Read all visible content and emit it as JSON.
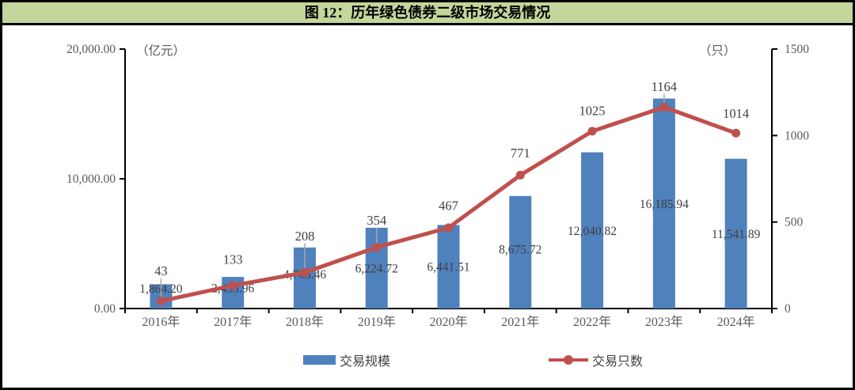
{
  "title_bar": {
    "text": "图 12：历年绿色债券二级市场交易情况"
  },
  "colors": {
    "title_bg": "#c3d69b",
    "bar": "#4f81bd",
    "line": "#c0504d",
    "axis_line": "#000000",
    "axis_text": "#595959",
    "data_label": "#404040",
    "leader": "#a6a6a6"
  },
  "chart_data": {
    "type": "bar",
    "subtype": "bar+line combo, dual axis",
    "categories": [
      "2016年",
      "2017年",
      "2018年",
      "2019年",
      "2020年",
      "2021年",
      "2022年",
      "2023年",
      "2024年"
    ],
    "series": [
      {
        "name": "交易规模",
        "type": "bar",
        "axis": "left",
        "unit": "亿元",
        "values": [
          1864.2,
          2433.96,
          4703.46,
          6224.72,
          6441.51,
          8675.72,
          12040.82,
          16185.94,
          11541.89
        ],
        "labels": [
          "1,864.20",
          "2,433.96",
          "4,703.46",
          "6,224.72",
          "6,441.51",
          "8,675.72",
          "12,040.82",
          "16,185.94",
          "11,541.89"
        ]
      },
      {
        "name": "交易只数",
        "type": "line",
        "axis": "right",
        "unit": "只",
        "values": [
          43,
          133,
          208,
          354,
          467,
          771,
          1025,
          1164,
          1014
        ],
        "labels": [
          "43",
          "133",
          "208",
          "354",
          "467",
          "771",
          "1025",
          "1164",
          "1014"
        ]
      }
    ],
    "left_axis": {
      "unit_label": "（亿元）",
      "min": 0,
      "max": 20000,
      "ticks": [
        {
          "label": "0.00",
          "v": 0
        },
        {
          "label": "10,000.00",
          "v": 10000
        },
        {
          "label": "20,000.00",
          "v": 20000
        }
      ]
    },
    "right_axis": {
      "unit_label": "（只）",
      "min": 0,
      "max": 1500,
      "ticks": [
        {
          "label": "0",
          "v": 0
        },
        {
          "label": "500",
          "v": 500
        },
        {
          "label": "1000",
          "v": 1000
        },
        {
          "label": "1500",
          "v": 1500
        }
      ]
    },
    "legend": {
      "bar_label": "交易规模",
      "line_label": "交易只数"
    },
    "grid": "off",
    "legend_position": "bottom"
  }
}
